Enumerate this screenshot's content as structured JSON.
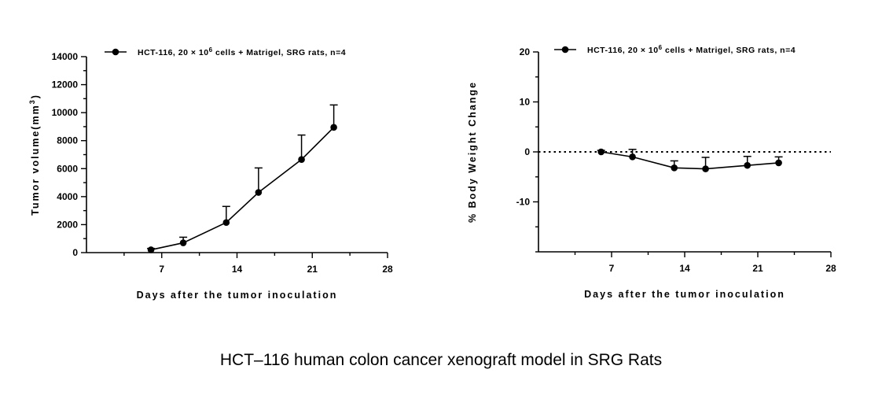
{
  "caption": "HCT–116 human colon cancer xenograft model in SRG Rats",
  "chart_data": [
    {
      "type": "line",
      "title": "",
      "xlabel": "Days after the tumor inoculation",
      "ylabel": "Tumor volume(mm3)",
      "ylabel_parts": [
        "Tumor volume(mm",
        "3",
        ")"
      ],
      "xlim": [
        0,
        28
      ],
      "ylim": [
        0,
        14000
      ],
      "xticks": [
        7,
        14,
        21,
        28
      ],
      "yticks": [
        0,
        2000,
        4000,
        6000,
        8000,
        10000,
        12000,
        14000
      ],
      "legend": {
        "position": "top",
        "text_parts": [
          "HCT-116, 20 × 10",
          "6",
          " cells + Matrigel, SRG rats, n=4"
        ]
      },
      "series": [
        {
          "name": "HCT-116, 20 × 10^6 cells + Matrigel, SRG rats, n=4",
          "x": [
            6,
            9,
            13,
            16,
            20,
            23
          ],
          "y": [
            200,
            700,
            2150,
            4300,
            6650,
            8950
          ],
          "error_upper": [
            100,
            400,
            1150,
            1750,
            1750,
            1600
          ]
        }
      ],
      "grid": false
    },
    {
      "type": "line",
      "title": "",
      "xlabel": "Days after the tumor inoculation",
      "ylabel": "% Body Weight Change",
      "xlim": [
        0,
        28
      ],
      "ylim": [
        -20,
        20
      ],
      "xticks": [
        7,
        14,
        21,
        28
      ],
      "yticks": [
        -10,
        0,
        10,
        20
      ],
      "reference_line": {
        "y": 0,
        "style": "dotted"
      },
      "legend": {
        "position": "top",
        "text_parts": [
          "HCT-116, 20 × 10",
          "6",
          " cells + Matrigel, SRG rats, n=4"
        ]
      },
      "series": [
        {
          "name": "HCT-116, 20 × 10^6 cells + Matrigel, SRG rats, n=4",
          "x": [
            6,
            9,
            13,
            16,
            20,
            23
          ],
          "y": [
            0,
            -1.0,
            -3.2,
            -3.4,
            -2.7,
            -2.2
          ],
          "error_upper": [
            0.3,
            1.5,
            1.4,
            2.3,
            1.8,
            1.2
          ]
        }
      ],
      "grid": false
    }
  ]
}
